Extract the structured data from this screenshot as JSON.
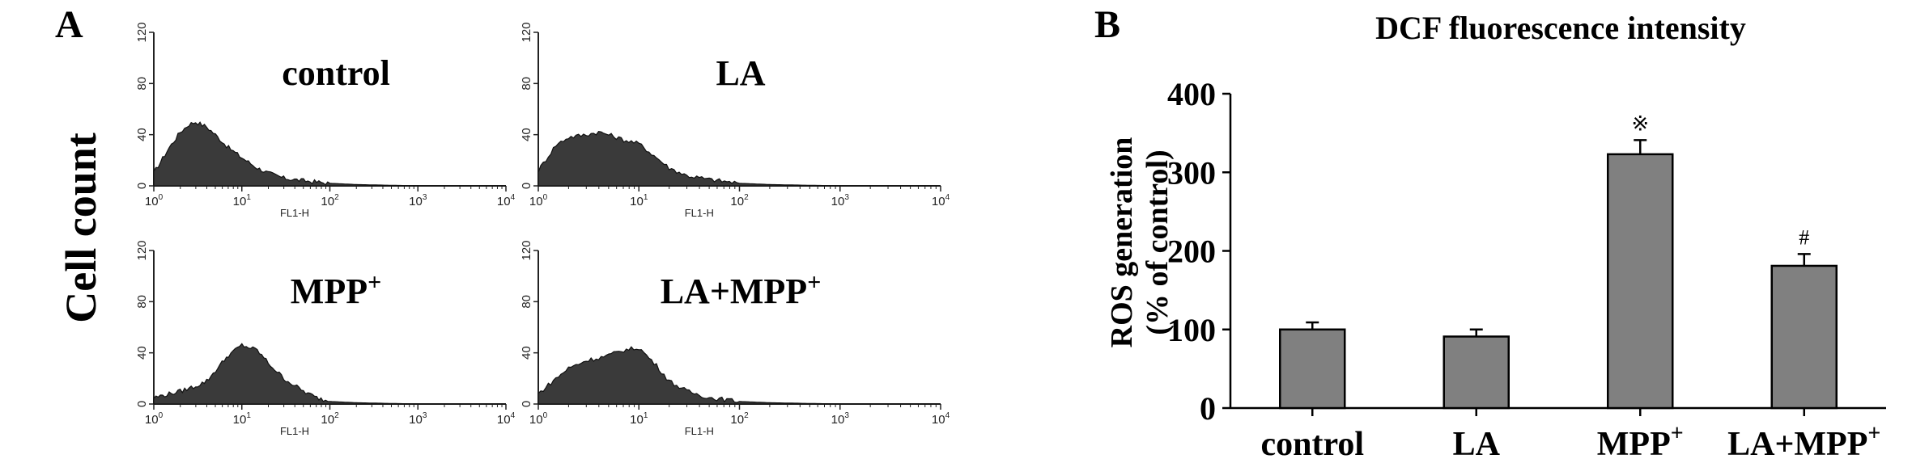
{
  "panels": {
    "a_letter": "A",
    "b_letter": "B"
  },
  "histograms": {
    "ylabel": "Cell count",
    "xlabel": "FL1-H",
    "ytick_labels": [
      "0",
      "40",
      "80",
      "120"
    ],
    "xtick_labels": [
      {
        "base": "10",
        "exp": "0"
      },
      {
        "base": "10",
        "exp": "1"
      },
      {
        "base": "10",
        "exp": "2"
      },
      {
        "base": "10",
        "exp": "3"
      },
      {
        "base": "10",
        "exp": "4"
      }
    ],
    "panels": [
      {
        "title": "control",
        "sup": ""
      },
      {
        "title": "LA",
        "sup": ""
      },
      {
        "title": "MPP",
        "sup": "+"
      },
      {
        "title": "LA+MPP",
        "sup": "+"
      }
    ]
  },
  "chart_data": [
    {
      "type": "area",
      "title": "control",
      "x_scale": "log",
      "xlim": [
        1,
        10000
      ],
      "ylim": [
        0,
        120
      ],
      "xlabel": "FL1-H",
      "ylabel": "Cell count",
      "x": [
        1,
        1.5,
        2,
        2.5,
        3,
        4,
        5,
        7,
        10,
        15,
        20,
        30,
        50,
        100,
        200,
        1000,
        10000
      ],
      "y": [
        10,
        30,
        42,
        48,
        50,
        46,
        40,
        30,
        22,
        14,
        10,
        6,
        4,
        2,
        1,
        0,
        0
      ]
    },
    {
      "type": "area",
      "title": "LA",
      "x_scale": "log",
      "xlim": [
        1,
        10000
      ],
      "ylim": [
        0,
        120
      ],
      "xlabel": "FL1-H",
      "ylabel": "Cell count",
      "x": [
        1,
        1.5,
        2,
        3,
        4,
        5,
        7,
        10,
        15,
        20,
        30,
        50,
        100,
        200,
        1000,
        10000
      ],
      "y": [
        12,
        32,
        38,
        40,
        42,
        40,
        36,
        33,
        22,
        14,
        8,
        5,
        2,
        1,
        0,
        0
      ]
    },
    {
      "type": "area",
      "title": "MPP+",
      "x_scale": "log",
      "xlim": [
        1,
        10000
      ],
      "ylim": [
        0,
        120
      ],
      "xlabel": "FL1-H",
      "ylabel": "Cell count",
      "x": [
        1,
        2,
        3,
        4,
        5,
        7,
        10,
        15,
        20,
        30,
        50,
        70,
        100,
        200,
        1000,
        10000
      ],
      "y": [
        5,
        10,
        14,
        18,
        26,
        38,
        46,
        42,
        32,
        20,
        10,
        5,
        2,
        1,
        0,
        0
      ]
    },
    {
      "type": "area",
      "title": "LA+MPP+",
      "x_scale": "log",
      "xlim": [
        1,
        10000
      ],
      "ylim": [
        0,
        120
      ],
      "xlabel": "FL1-H",
      "ylabel": "Cell count",
      "x": [
        1,
        1.5,
        2,
        3,
        4,
        5,
        7,
        10,
        15,
        20,
        30,
        50,
        100,
        200,
        1000,
        10000
      ],
      "y": [
        8,
        20,
        28,
        34,
        36,
        38,
        42,
        44,
        30,
        18,
        10,
        5,
        2,
        1,
        0,
        0
      ]
    },
    {
      "type": "bar",
      "title": "DCF  fluorescence intensity",
      "ylabel": "ROS generation",
      "ylabel2": "(% of control)",
      "ylim": [
        0,
        400
      ],
      "yticks": [
        "0",
        "100",
        "200",
        "300",
        "400"
      ],
      "categories": [
        {
          "label": "control",
          "sup": ""
        },
        {
          "label": "LA",
          "sup": ""
        },
        {
          "label": "MPP",
          "sup": "+"
        },
        {
          "label": "LA+MPP",
          "sup": "+"
        }
      ],
      "values": [
        100,
        91,
        323,
        181
      ],
      "errors": [
        9,
        9,
        18,
        15
      ],
      "annotations": [
        "",
        "",
        "※",
        "#"
      ],
      "bar_color": "#808080"
    }
  ]
}
